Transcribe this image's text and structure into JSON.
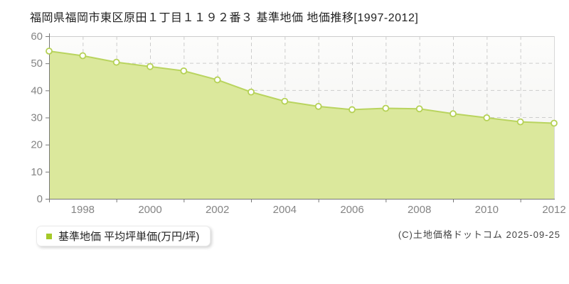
{
  "header": {
    "title": "福岡県福岡市東区原田１丁目１１９２番３ 基準地価 地価推移[1997-2012]"
  },
  "legend": {
    "label": "基準地価 平均坪単価(万円/坪)",
    "marker_color": "#a5c929"
  },
  "footer": {
    "copyright": "(C)土地価格ドットコム 2025-09-25"
  },
  "chart_data": {
    "type": "area",
    "title": "福岡県福岡市東区原田１丁目１１９２番３ 基準地価 地価推移[1997-2012]",
    "x": [
      1997,
      1998,
      1999,
      2000,
      2001,
      2002,
      2003,
      2004,
      2005,
      2006,
      2007,
      2008,
      2009,
      2010,
      2011,
      2012
    ],
    "series": [
      {
        "name": "基準地価 平均坪単価(万円/坪)",
        "values": [
          54.5,
          52.8,
          50.4,
          48.8,
          47.2,
          43.9,
          39.4,
          36.0,
          34.1,
          32.9,
          33.4,
          33.2,
          31.4,
          29.9,
          28.4,
          27.9
        ]
      }
    ],
    "xlabel": "",
    "ylabel": "",
    "ylim": [
      0,
      60
    ],
    "yticks": [
      0,
      10,
      20,
      30,
      40,
      50,
      60
    ],
    "xtick_labels": [
      "1998",
      "2000",
      "2002",
      "2004",
      "2006",
      "2008",
      "2010",
      "2012"
    ],
    "grid": "dashed",
    "legend_position": "bottom-left",
    "colors": {
      "area_fill": "#dbe89c",
      "line": "#b9d45f",
      "marker_fill": "#ffffff",
      "marker_stroke": "#b5d155",
      "gridline": "#cccccc",
      "axis": "#777777",
      "tick_label": "#848484",
      "plot_bg_top": "#fcfcfb",
      "plot_bg_bottom": "#f2f2ef"
    }
  }
}
